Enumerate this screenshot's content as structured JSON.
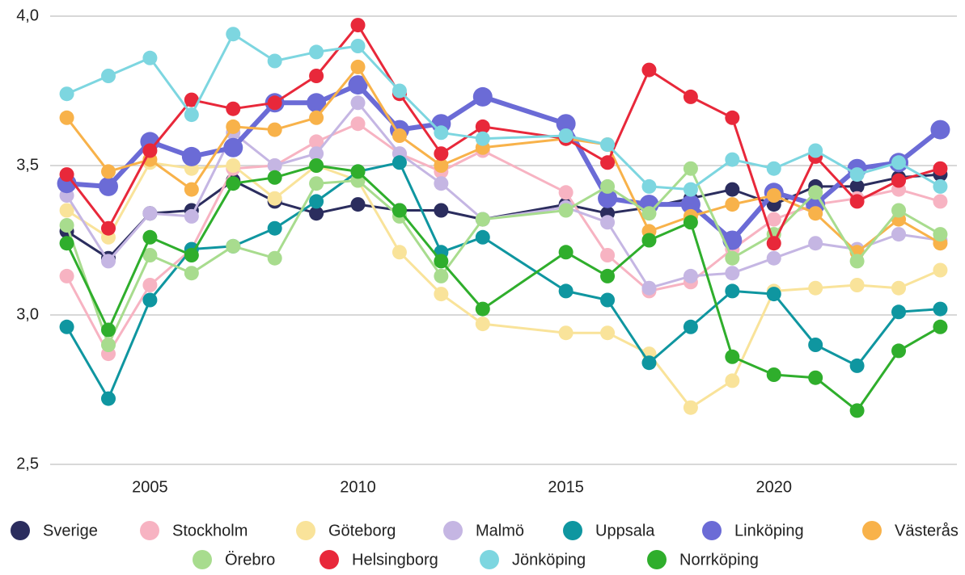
{
  "chart_data": {
    "type": "line",
    "x": [
      2003,
      2004,
      2005,
      2006,
      2007,
      2008,
      2009,
      2010,
      2011,
      2012,
      2013,
      2015,
      2016,
      2017,
      2018,
      2019,
      2020,
      2021,
      2022,
      2023,
      2024
    ],
    "xlim": [
      2002.6,
      2024.4
    ],
    "xticks": [
      2005,
      2010,
      2015,
      2020
    ],
    "ylim": [
      2.5,
      4.0
    ],
    "yticks": [
      {
        "value": 2.5,
        "label": "2,5"
      },
      {
        "value": 3.0,
        "label": "3,0"
      },
      {
        "value": 3.5,
        "label": "3,5"
      },
      {
        "value": 4.0,
        "label": "4,0"
      }
    ],
    "grid": true,
    "legend": "bottom",
    "series": [
      {
        "name": "Sverige",
        "color": "#2b2d5e",
        "values": [
          3.28,
          3.19,
          3.34,
          3.35,
          3.45,
          3.38,
          3.34,
          3.37,
          3.35,
          3.35,
          3.32,
          3.37,
          3.34,
          3.36,
          3.39,
          3.42,
          3.37,
          3.43,
          3.43,
          3.46,
          3.47
        ]
      },
      {
        "name": "Stockholm",
        "color": "#f7b3c2",
        "values": [
          3.13,
          2.87,
          3.1,
          3.22,
          3.49,
          3.5,
          3.58,
          3.64,
          3.54,
          3.48,
          3.55,
          3.41,
          3.2,
          3.08,
          3.11,
          3.22,
          3.32,
          3.37,
          3.39,
          3.42,
          3.38
        ]
      },
      {
        "name": "Göteborg",
        "color": "#f9e39a",
        "values": [
          3.35,
          3.26,
          3.51,
          3.49,
          3.5,
          3.39,
          3.5,
          3.45,
          3.21,
          3.07,
          2.97,
          2.94,
          2.94,
          2.87,
          2.69,
          2.78,
          3.08,
          3.09,
          3.1,
          3.09,
          3.15
        ]
      },
      {
        "name": "Malmö",
        "color": "#c5b6e3",
        "values": [
          3.4,
          3.18,
          3.34,
          3.33,
          3.61,
          3.5,
          3.54,
          3.71,
          3.54,
          3.44,
          3.32,
          3.36,
          3.31,
          3.09,
          3.13,
          3.14,
          3.19,
          3.24,
          3.22,
          3.27,
          3.25
        ]
      },
      {
        "name": "Uppsala",
        "color": "#0f96a0",
        "values": [
          2.96,
          2.72,
          3.05,
          3.22,
          3.23,
          3.29,
          3.38,
          3.48,
          3.51,
          3.21,
          3.26,
          3.08,
          3.05,
          2.84,
          2.96,
          3.08,
          3.07,
          2.9,
          2.83,
          3.01,
          3.02
        ]
      },
      {
        "name": "Linköping",
        "color": "#6b6bd6",
        "values": [
          3.44,
          3.43,
          3.58,
          3.53,
          3.56,
          3.71,
          3.71,
          3.77,
          3.62,
          3.64,
          3.73,
          3.64,
          3.39,
          3.37,
          3.37,
          3.25,
          3.41,
          3.37,
          3.49,
          3.51,
          3.62
        ]
      },
      {
        "name": "Västerås",
        "color": "#f8b24a",
        "values": [
          3.66,
          3.48,
          3.52,
          3.42,
          3.63,
          3.62,
          3.66,
          3.83,
          3.6,
          3.5,
          3.56,
          3.59,
          3.57,
          3.28,
          3.33,
          3.37,
          3.4,
          3.34,
          3.21,
          3.32,
          3.24
        ]
      },
      {
        "name": "Örebro",
        "color": "#a8dc8e",
        "values": [
          3.3,
          2.9,
          3.2,
          3.14,
          3.23,
          3.19,
          3.44,
          3.45,
          3.33,
          3.13,
          3.32,
          3.35,
          3.43,
          3.34,
          3.49,
          3.19,
          3.27,
          3.41,
          3.18,
          3.35,
          3.27
        ]
      },
      {
        "name": "Helsingborg",
        "color": "#e8283a",
        "values": [
          3.47,
          3.29,
          3.55,
          3.72,
          3.69,
          3.71,
          3.8,
          3.97,
          3.74,
          3.54,
          3.63,
          3.59,
          3.51,
          3.82,
          3.73,
          3.66,
          3.24,
          3.53,
          3.38,
          3.45,
          3.49
        ]
      },
      {
        "name": "Jönköping",
        "color": "#7dd6e0",
        "values": [
          3.74,
          3.8,
          3.86,
          3.67,
          3.94,
          3.85,
          3.88,
          3.9,
          3.75,
          3.61,
          3.59,
          3.6,
          3.57,
          3.43,
          3.42,
          3.52,
          3.49,
          3.55,
          3.47,
          3.51,
          3.43
        ]
      },
      {
        "name": "Norrköping",
        "color": "#2fae2c",
        "values": [
          3.24,
          2.95,
          3.26,
          3.2,
          3.44,
          3.46,
          3.5,
          3.48,
          3.35,
          3.18,
          3.02,
          3.21,
          3.13,
          3.25,
          3.31,
          2.86,
          2.8,
          2.79,
          2.68,
          2.88,
          2.96
        ]
      }
    ]
  }
}
